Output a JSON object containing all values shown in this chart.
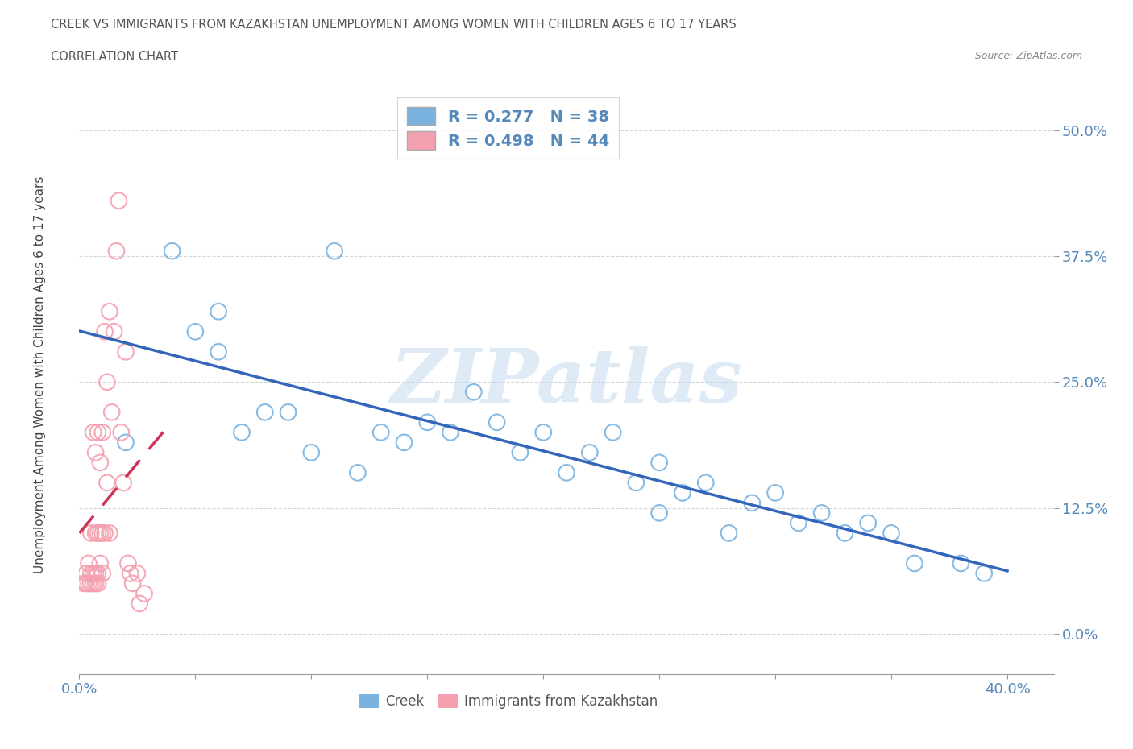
{
  "title_line1": "CREEK VS IMMIGRANTS FROM KAZAKHSTAN UNEMPLOYMENT AMONG WOMEN WITH CHILDREN AGES 6 TO 17 YEARS",
  "title_line2": "CORRELATION CHART",
  "source": "Source: ZipAtlas.com",
  "ylabel": "Unemployment Among Women with Children Ages 6 to 17 years",
  "xlabel_creek": "Creek",
  "xlabel_kazakh": "Immigrants from Kazakhstan",
  "creek_R": 0.277,
  "creek_N": 38,
  "kazakh_R": 0.498,
  "kazakh_N": 44,
  "xlim": [
    0.0,
    0.42
  ],
  "ylim": [
    -0.04,
    0.54
  ],
  "yticks": [
    0.0,
    0.125,
    0.25,
    0.375,
    0.5
  ],
  "ytick_labels": [
    "0.0%",
    "12.5%",
    "25.0%",
    "37.5%",
    "50.0%"
  ],
  "xticks": [
    0.0,
    0.05,
    0.1,
    0.15,
    0.2,
    0.25,
    0.3,
    0.35,
    0.4
  ],
  "xtick_labels": [
    "0.0%",
    "",
    "",
    "",
    "",
    "",
    "",
    "",
    "40.0%"
  ],
  "creek_color": "#7ab3e0",
  "kazakh_color": "#f4a0b0",
  "creek_line_color": "#3366bb",
  "kazakh_line_color": "#cc3355",
  "watermark_color": "#c8ddf0",
  "watermark": "ZIPatlas",
  "tick_color": "#5588bb",
  "creek_x": [
    0.02,
    0.04,
    0.05,
    0.06,
    0.06,
    0.07,
    0.08,
    0.09,
    0.1,
    0.11,
    0.12,
    0.13,
    0.14,
    0.15,
    0.16,
    0.17,
    0.18,
    0.19,
    0.2,
    0.21,
    0.22,
    0.23,
    0.24,
    0.25,
    0.25,
    0.26,
    0.27,
    0.28,
    0.29,
    0.3,
    0.31,
    0.32,
    0.33,
    0.34,
    0.35,
    0.36,
    0.38,
    0.39
  ],
  "creek_y": [
    0.19,
    0.38,
    0.3,
    0.32,
    0.28,
    0.2,
    0.22,
    0.22,
    0.18,
    0.38,
    0.16,
    0.2,
    0.19,
    0.21,
    0.2,
    0.24,
    0.21,
    0.18,
    0.2,
    0.16,
    0.18,
    0.2,
    0.15,
    0.17,
    0.12,
    0.14,
    0.15,
    0.1,
    0.13,
    0.14,
    0.11,
    0.12,
    0.1,
    0.11,
    0.1,
    0.07,
    0.07,
    0.06
  ],
  "kazakh_x": [
    0.002,
    0.003,
    0.003,
    0.004,
    0.004,
    0.005,
    0.005,
    0.005,
    0.006,
    0.006,
    0.006,
    0.007,
    0.007,
    0.007,
    0.007,
    0.008,
    0.008,
    0.008,
    0.008,
    0.009,
    0.009,
    0.009,
    0.01,
    0.01,
    0.01,
    0.011,
    0.011,
    0.012,
    0.012,
    0.013,
    0.013,
    0.014,
    0.015,
    0.016,
    0.017,
    0.018,
    0.019,
    0.02,
    0.021,
    0.022,
    0.023,
    0.025,
    0.026,
    0.028
  ],
  "kazakh_y": [
    0.05,
    0.05,
    0.06,
    0.05,
    0.07,
    0.05,
    0.06,
    0.1,
    0.05,
    0.06,
    0.2,
    0.05,
    0.06,
    0.1,
    0.18,
    0.05,
    0.06,
    0.1,
    0.2,
    0.07,
    0.1,
    0.17,
    0.06,
    0.1,
    0.2,
    0.1,
    0.3,
    0.15,
    0.25,
    0.1,
    0.32,
    0.22,
    0.3,
    0.38,
    0.43,
    0.2,
    0.15,
    0.28,
    0.07,
    0.06,
    0.05,
    0.06,
    0.03,
    0.04
  ]
}
